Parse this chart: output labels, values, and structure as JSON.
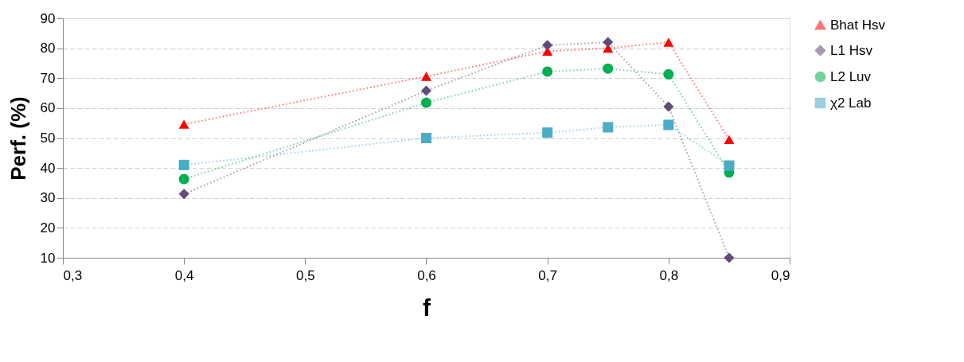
{
  "chart_data": {
    "type": "line",
    "xlabel": "f",
    "ylabel": "Perf. (%)",
    "x": [
      0.4,
      0.6,
      0.7,
      0.75,
      0.8,
      0.85
    ],
    "series": [
      {
        "name": "Bhat Hsv",
        "color": "#ff0000",
        "marker": "triangle",
        "values": [
          54.6,
          70.6,
          79,
          80,
          82,
          49.5
        ]
      },
      {
        "name": "L1 Hsv",
        "color": "#604a7b",
        "marker": "diamond",
        "values": [
          31.3,
          65.8,
          81,
          82,
          60.5,
          10
        ]
      },
      {
        "name": "L2 Luv",
        "color": "#00b050",
        "marker": "circle",
        "values": [
          36.3,
          61.8,
          72.2,
          73.2,
          71.3,
          38.5
        ]
      },
      {
        "name": "χ2 Lab",
        "color": "#4bacc6",
        "marker": "square",
        "values": [
          41,
          50,
          51.8,
          53.6,
          54.4,
          40.8
        ]
      }
    ],
    "xlim": [
      0.3,
      0.9
    ],
    "xticks": [
      {
        "value": 0.3,
        "label": "0,3"
      },
      {
        "value": 0.4,
        "label": "0,4"
      },
      {
        "value": 0.5,
        "label": "0,5"
      },
      {
        "value": 0.6,
        "label": "0,6"
      },
      {
        "value": 0.7,
        "label": "0,7"
      },
      {
        "value": 0.8,
        "label": "0,8"
      },
      {
        "value": 0.9,
        "label": "0,9"
      }
    ],
    "ylim": [
      10,
      90
    ],
    "yticks": [
      10,
      20,
      30,
      40,
      50,
      60,
      70,
      80,
      90
    ],
    "grid": "y",
    "legend": "right",
    "line_style": "dotted"
  }
}
